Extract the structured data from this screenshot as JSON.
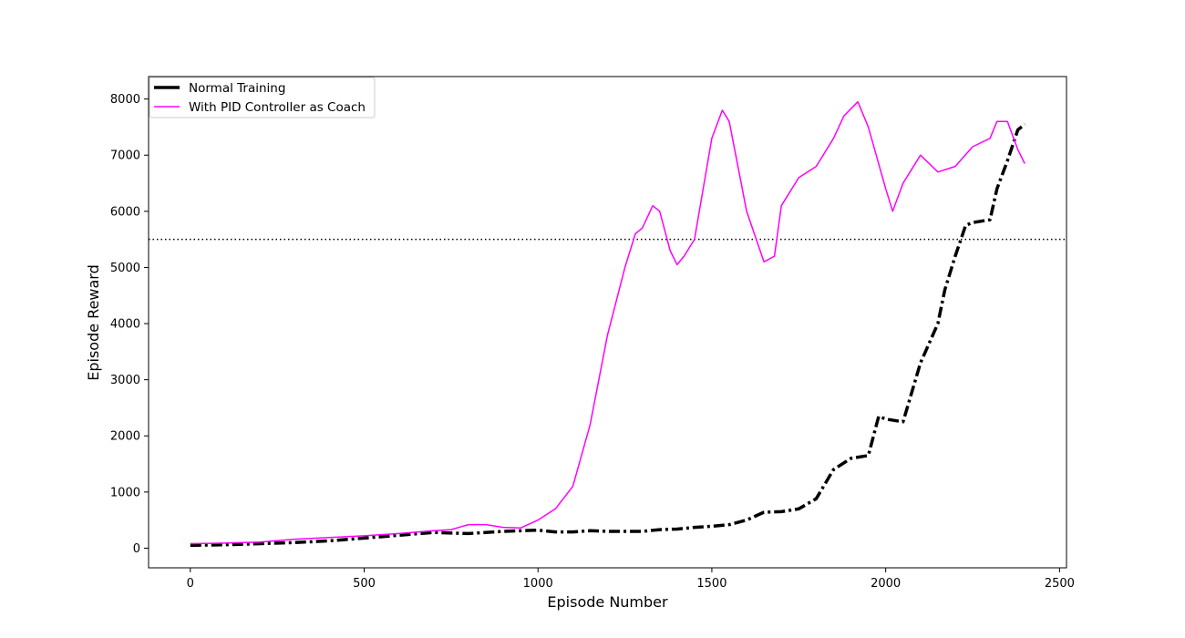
{
  "chart_data": {
    "type": "line",
    "xlabel": "Episode Number",
    "ylabel": "Episode Reward",
    "xlim": [
      -120,
      2520
    ],
    "ylim": [
      -350,
      8400
    ],
    "xticks": [
      0,
      500,
      1000,
      1500,
      2000,
      2500
    ],
    "yticks": [
      0,
      1000,
      2000,
      3000,
      4000,
      5000,
      6000,
      7000,
      8000
    ],
    "grid": false,
    "legend_position": "top-left",
    "reference_lines": [
      {
        "orientation": "horizontal",
        "y": 5500,
        "style": "dotted",
        "color": "#000000"
      }
    ],
    "series": [
      {
        "name": "Normal Training",
        "color": "#000000",
        "style": "dashdot",
        "x": [
          0,
          100,
          200,
          300,
          400,
          500,
          600,
          700,
          800,
          900,
          1000,
          1050,
          1100,
          1150,
          1200,
          1250,
          1300,
          1350,
          1400,
          1450,
          1500,
          1550,
          1600,
          1650,
          1700,
          1750,
          1800,
          1850,
          1900,
          1950,
          1980,
          2000,
          2050,
          2100,
          2150,
          2170,
          2200,
          2230,
          2250,
          2300,
          2320,
          2350,
          2380,
          2400
        ],
        "y": [
          50,
          60,
          80,
          100,
          130,
          180,
          230,
          280,
          260,
          300,
          320,
          290,
          290,
          310,
          300,
          300,
          300,
          330,
          340,
          370,
          390,
          420,
          500,
          640,
          650,
          700,
          880,
          1400,
          1600,
          1650,
          2350,
          2300,
          2250,
          3300,
          4000,
          4600,
          5200,
          5750,
          5800,
          5850,
          6400,
          6900,
          7450,
          7550
        ]
      },
      {
        "name": "With PID Controller as Coach",
        "color": "#ff00ff",
        "style": "solid",
        "x": [
          0,
          100,
          200,
          300,
          400,
          500,
          600,
          700,
          750,
          800,
          850,
          900,
          950,
          1000,
          1050,
          1100,
          1150,
          1200,
          1250,
          1280,
          1300,
          1330,
          1350,
          1380,
          1400,
          1420,
          1450,
          1500,
          1530,
          1550,
          1600,
          1650,
          1680,
          1700,
          1750,
          1800,
          1850,
          1880,
          1920,
          1950,
          2000,
          2020,
          2050,
          2100,
          2150,
          2200,
          2250,
          2300,
          2320,
          2350,
          2380,
          2400
        ],
        "y": [
          80,
          90,
          110,
          160,
          190,
          220,
          260,
          310,
          330,
          420,
          420,
          370,
          360,
          500,
          700,
          1100,
          2200,
          3800,
          5000,
          5600,
          5700,
          6100,
          6000,
          5300,
          5050,
          5200,
          5500,
          7300,
          7800,
          7600,
          6000,
          5100,
          5200,
          6100,
          6600,
          6800,
          7300,
          7700,
          7950,
          7500,
          6400,
          6000,
          6500,
          7000,
          6700,
          6800,
          7150,
          7300,
          7600,
          7600,
          7100,
          6850
        ]
      }
    ]
  }
}
